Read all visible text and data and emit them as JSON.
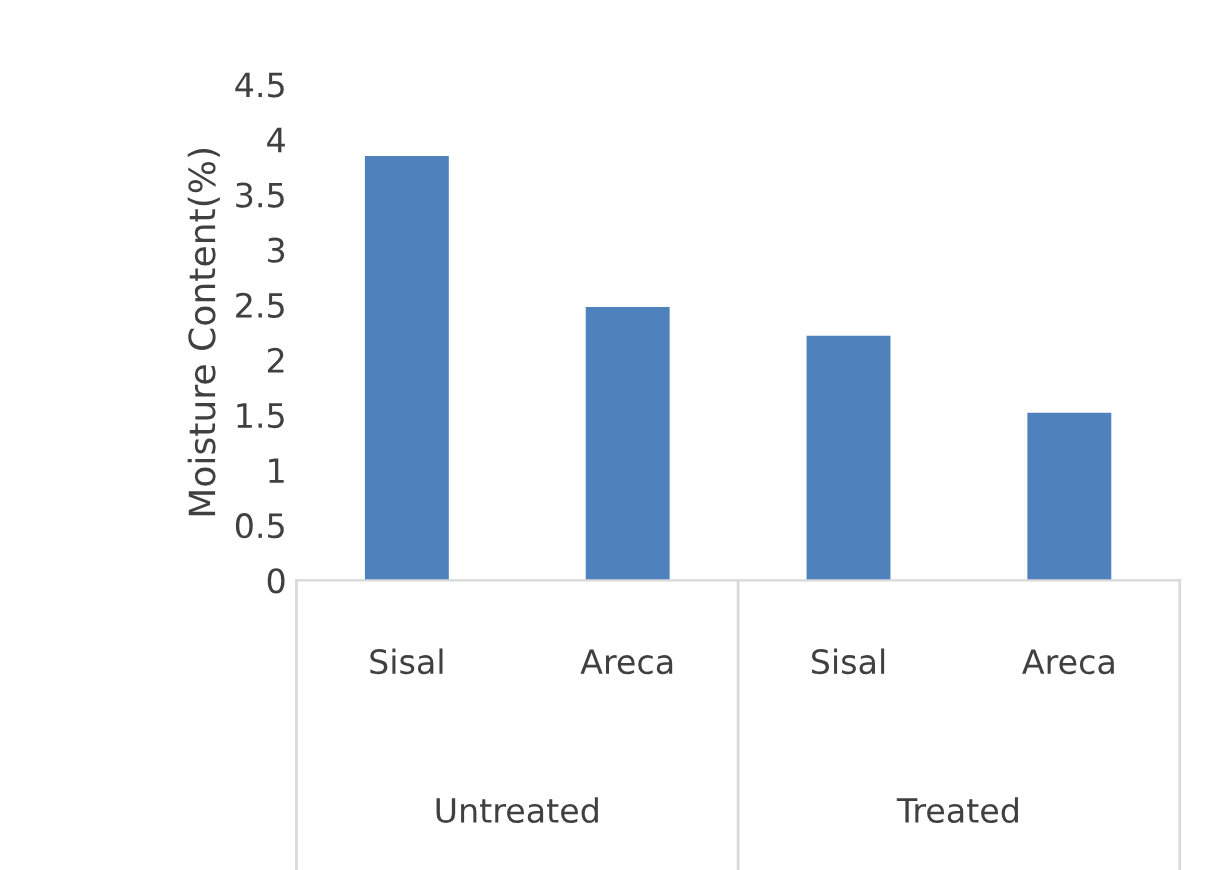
{
  "chart_data": {
    "type": "bar",
    "ylabel": "Moisture Content(%)",
    "categories": [
      "Sisal",
      "Areca",
      "Sisal",
      "Areca"
    ],
    "values": [
      3.85,
      2.48,
      2.22,
      1.52
    ],
    "color": "#4f81bd",
    "ylim": [
      0,
      4.5
    ],
    "yticks": [
      0,
      {
        "value": 0.5,
        "label": "0.5"
      },
      1,
      {
        "value": 1.5,
        "label": "1.5"
      },
      2,
      {
        "value": 2.5,
        "label": "2.5"
      },
      3,
      {
        "value": 3.5,
        "label": "3.5"
      },
      4,
      {
        "value": 4.5,
        "label": "4.5"
      }
    ],
    "annotations": [
      "Untreated",
      "Treated"
    ],
    "grid": false,
    "legend": false
  }
}
